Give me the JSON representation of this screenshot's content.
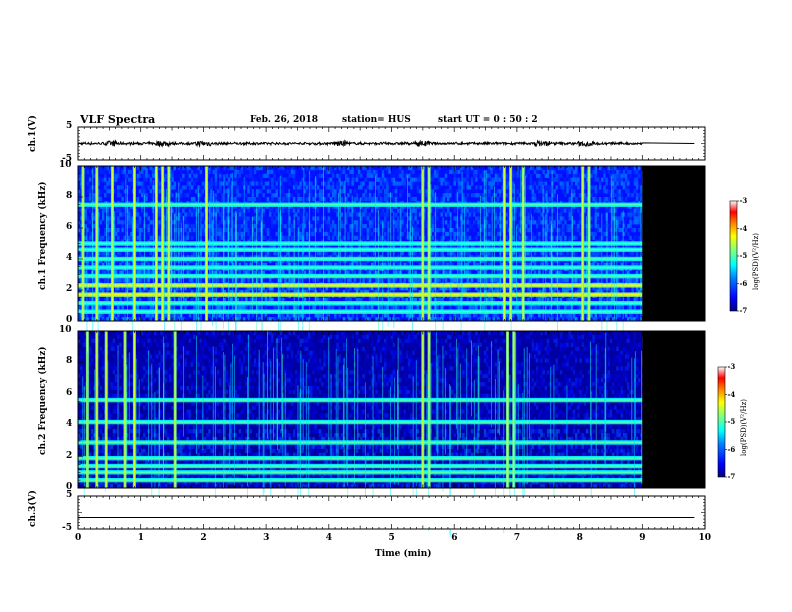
{
  "header": {
    "title": "VLF Spectra",
    "date": "Feb. 26, 2018",
    "station": "station= HUS",
    "start": "start  UT =   0 : 50 : 2"
  },
  "chart_data": [
    {
      "type": "line",
      "panel": "ch1_waveform",
      "ylabel": "ch.1(V)",
      "ylim": [
        -5,
        5
      ],
      "yticks": [
        "5",
        "-5"
      ],
      "x_extent_min": [
        0,
        9.83
      ],
      "trace_end_min": 9.0,
      "note_values": {
        "baseline_v": 0,
        "burst_times_min": [
          0.55,
          1.35,
          2.0,
          4.2,
          5.5,
          7.4,
          8.1
        ]
      }
    },
    {
      "type": "heatmap",
      "panel": "ch1_spectrogram",
      "ylabel": "ch.1 Frequency (kHz)",
      "ylim": [
        0,
        10
      ],
      "yticks": [
        "0",
        "2",
        "4",
        "6",
        "8",
        "10"
      ],
      "data_end_min": 9.0,
      "bands_khz": [
        0.6,
        1.15,
        1.7,
        2.3,
        2.9,
        3.45,
        4.0,
        4.6,
        5.0,
        7.5
      ],
      "strong_band_khz": [
        1.7,
        2.3
      ],
      "burst_times_min": [
        0.08,
        0.3,
        0.55,
        0.9,
        1.25,
        1.35,
        1.45,
        2.05,
        5.5,
        5.6,
        6.8,
        6.9,
        7.1,
        8.05,
        8.15
      ],
      "colorbar": {
        "label": "log(PSD)(V²/Hz)",
        "range": [
          -7,
          -3
        ],
        "ticks": [
          "-3",
          "-4",
          "-5",
          "-6",
          "-7"
        ]
      }
    },
    {
      "type": "heatmap",
      "panel": "ch2_spectrogram",
      "ylabel": "ch.2 Frequency (kHz)",
      "ylim": [
        0,
        10
      ],
      "yticks": [
        "0",
        "2",
        "4",
        "6",
        "8",
        "10"
      ],
      "data_end_min": 9.0,
      "bands_khz": [
        0.5,
        1.0,
        1.4,
        1.9,
        2.9,
        4.2,
        5.6
      ],
      "burst_times_min": [
        0.15,
        0.3,
        0.45,
        0.75,
        0.9,
        1.55,
        5.5,
        5.6,
        6.85,
        6.95
      ],
      "colorbar": {
        "label": "log(PSD)(V²/Hz)",
        "range": [
          -7,
          -3
        ],
        "ticks": [
          "-3",
          "-4",
          "-5",
          "-6",
          "-7"
        ]
      }
    },
    {
      "type": "line",
      "panel": "ch3_waveform",
      "ylabel": "ch.3(V)",
      "ylim": [
        -5,
        5
      ],
      "yticks": [
        "5",
        "-5"
      ],
      "value_v": -1.5
    }
  ],
  "x_axis": {
    "label": "Time  (min)",
    "range": [
      0,
      10
    ],
    "ticks": [
      "0",
      "1",
      "2",
      "3",
      "4",
      "5",
      "6",
      "7",
      "8",
      "9",
      "10"
    ]
  },
  "colors": {
    "colormap": [
      "#00007f",
      "#0000ff",
      "#0080ff",
      "#00ffff",
      "#80ff80",
      "#ffff00",
      "#ff8000",
      "#ff0000",
      "#ffffff"
    ]
  }
}
